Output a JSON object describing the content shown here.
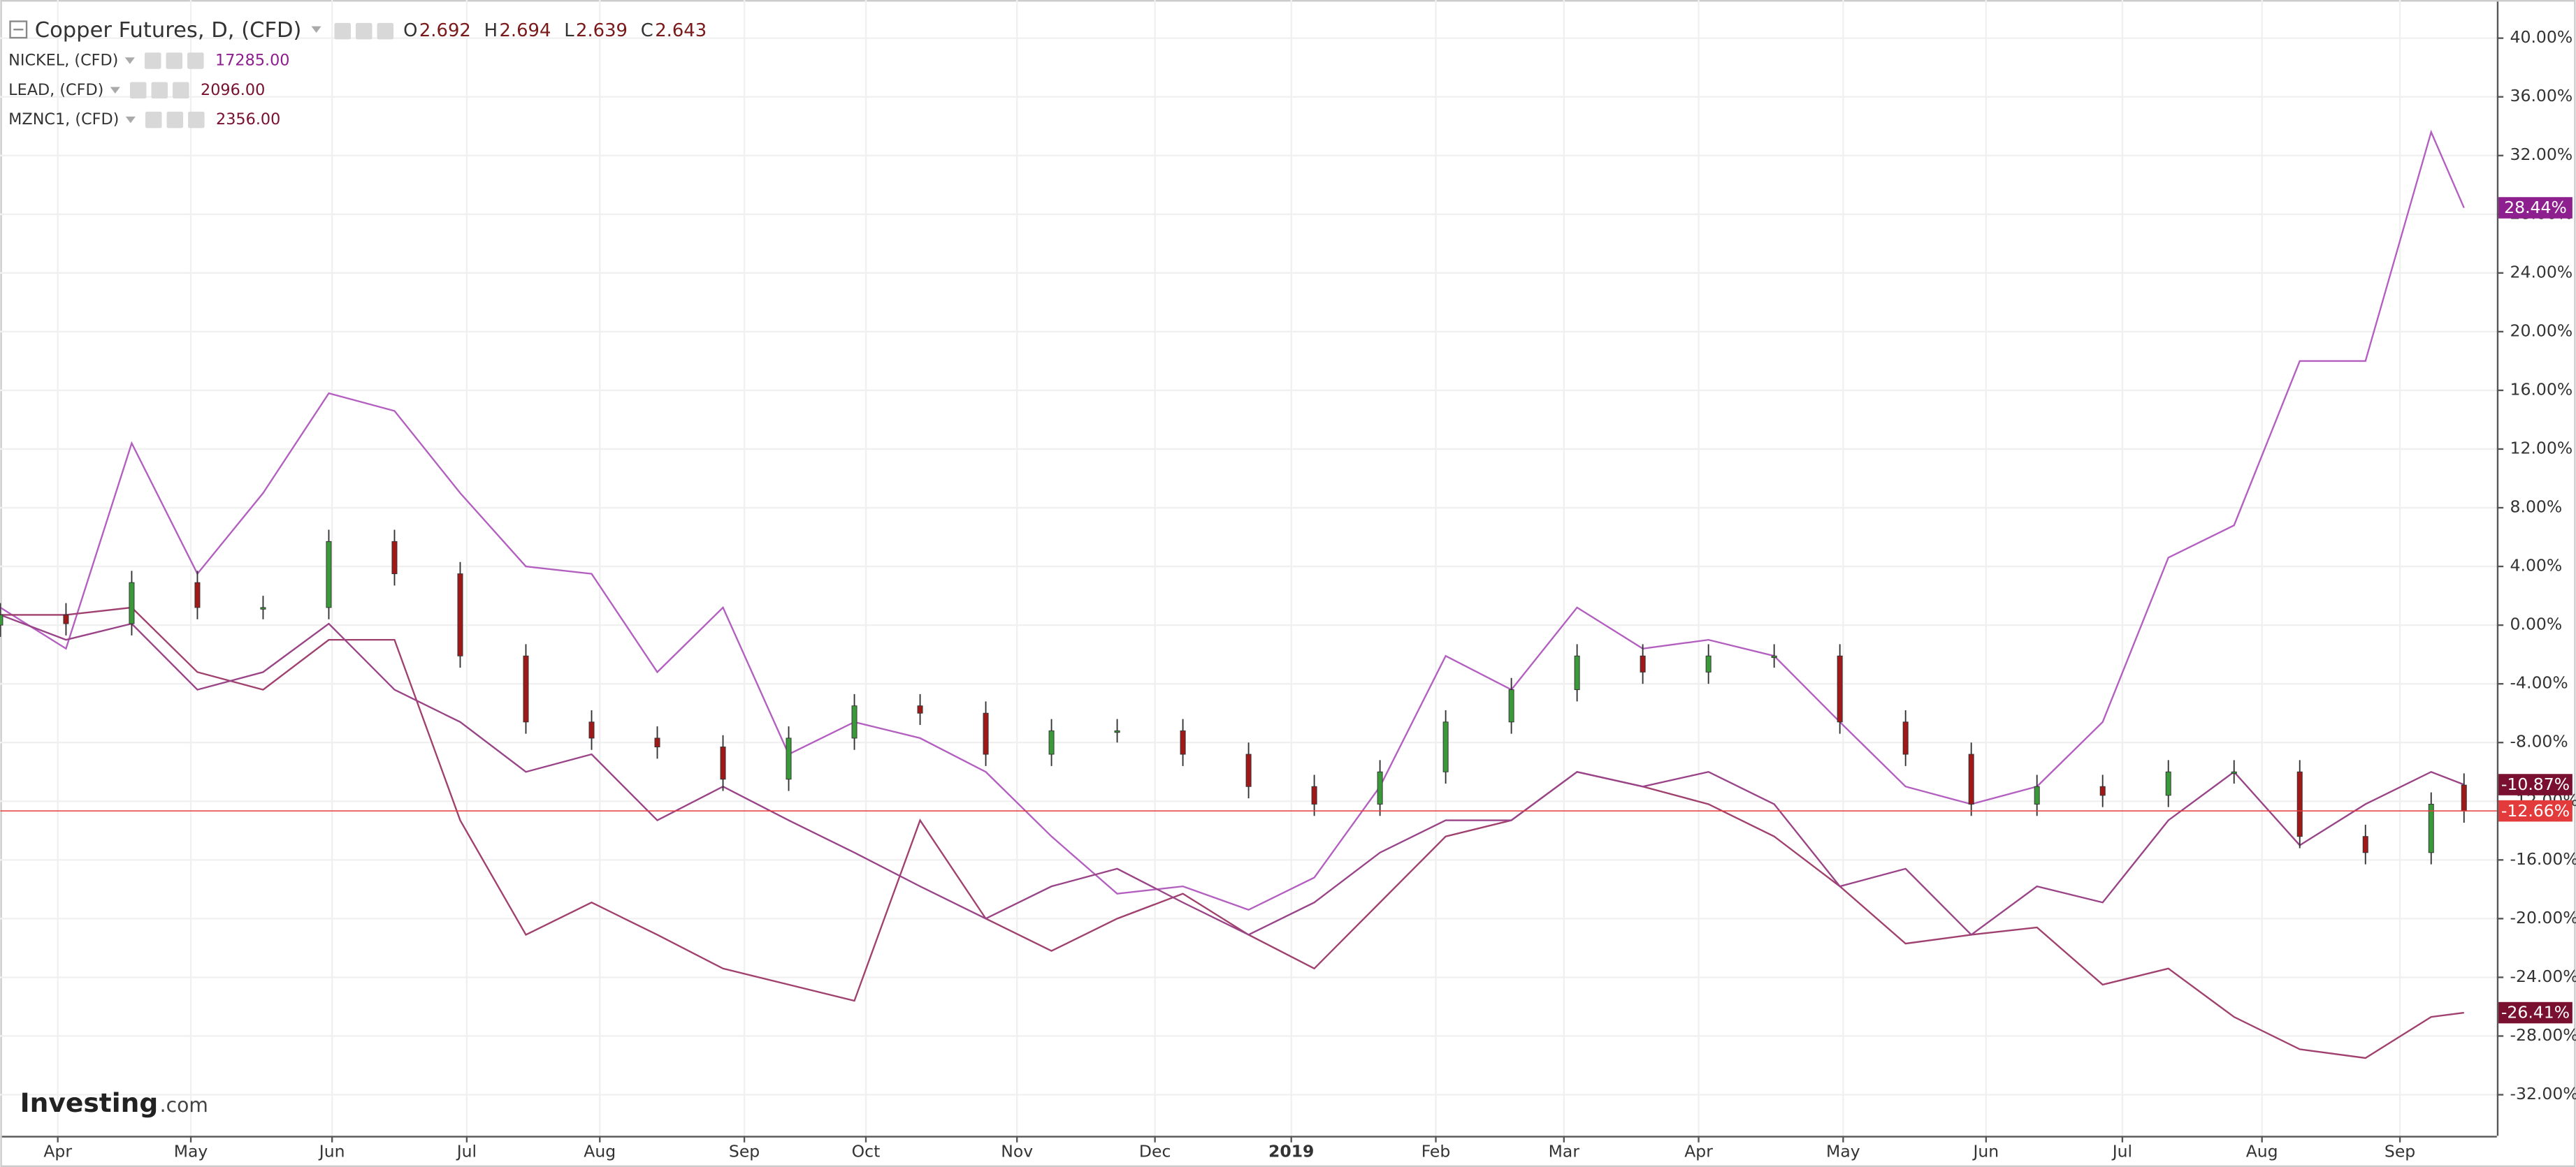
{
  "chart_data": {
    "type": "candlestick",
    "title": "Copper Futures, D, (CFD)",
    "ohlc_header": [
      {
        "label": "O",
        "value": 2.692
      },
      {
        "label": "H",
        "value": 2.694
      },
      {
        "label": "L",
        "value": 2.639
      },
      {
        "label": "C",
        "value": 2.643
      }
    ],
    "brand": "Investing",
    "brand_suffix": ".com",
    "x": [
      0,
      10,
      20,
      30,
      40,
      50,
      60,
      70,
      80,
      90,
      100,
      110,
      120,
      130,
      140,
      150,
      160,
      170,
      180,
      190,
      200,
      210,
      220,
      230,
      240,
      250,
      260,
      270,
      280,
      290,
      300,
      310,
      320,
      330,
      340,
      350,
      360,
      370,
      375
    ],
    "xlim": [
      0,
      380
    ],
    "xticks": [
      {
        "value": 8.75,
        "label": "Apr"
      },
      {
        "value": 29,
        "label": "May"
      },
      {
        "value": 50.5,
        "label": "Jun"
      },
      {
        "value": 71,
        "label": "Jul"
      },
      {
        "value": 91.25,
        "label": "Aug"
      },
      {
        "value": 113.25,
        "label": "Sep"
      },
      {
        "value": 131.75,
        "label": "Oct"
      },
      {
        "value": 154.75,
        "label": "Nov"
      },
      {
        "value": 175.75,
        "label": "Dec"
      },
      {
        "value": 196.5,
        "label": "2019"
      },
      {
        "value": 218.5,
        "label": "Feb"
      },
      {
        "value": 238,
        "label": "Mar"
      },
      {
        "value": 258.5,
        "label": "Apr"
      },
      {
        "value": 280.5,
        "label": "May"
      },
      {
        "value": 302.25,
        "label": "Jun"
      },
      {
        "value": 323,
        "label": "Jul"
      },
      {
        "value": 344.25,
        "label": "Aug"
      },
      {
        "value": 365.25,
        "label": "Sep"
      }
    ],
    "ylim": [
      -34.8,
      42.6
    ],
    "yticks": [
      {
        "value": -32,
        "label": "-32.00%"
      },
      {
        "value": -28,
        "label": "-28.00%"
      },
      {
        "value": -24,
        "label": "-24.00%"
      },
      {
        "value": -20,
        "label": "-20.00%"
      },
      {
        "value": -16,
        "label": "-16.00%"
      },
      {
        "value": -12,
        "label": "-12.00%"
      },
      {
        "value": -8,
        "label": "-8.00%"
      },
      {
        "value": -4,
        "label": "-4.00%"
      },
      {
        "value": 0,
        "label": "0.00%"
      },
      {
        "value": 4,
        "label": "4.00%"
      },
      {
        "value": 8,
        "label": "8.00%"
      },
      {
        "value": 12,
        "label": "12.00%"
      },
      {
        "value": 16,
        "label": "16.00%"
      },
      {
        "value": 20,
        "label": "20.00%"
      },
      {
        "value": 24,
        "label": "24.00%"
      },
      {
        "value": 28,
        "label": "28.00%"
      },
      {
        "value": 32,
        "label": "32.00%"
      },
      {
        "value": 36,
        "label": "36.00%"
      },
      {
        "value": 40,
        "label": "40.00%"
      }
    ],
    "grid": true,
    "candles": {
      "up_color": "#3a9a3a",
      "down_color": "#a01818",
      "label_color": "#e33b3b",
      "last_label": "-12.66%",
      "open": [
        0,
        0.7,
        0.1,
        2.9,
        1.2,
        1.2,
        5.7,
        3.5,
        -2.1,
        -6.6,
        -7.7,
        -8.3,
        -10.5,
        -7.7,
        -5.5,
        -6,
        -8.8,
        -7.2,
        -7.2,
        -8.8,
        -11,
        -12.2,
        -10,
        -6.6,
        -4.4,
        -2.1,
        -3.2,
        -2.1,
        -2.1,
        -6.6,
        -8.8,
        -12.2,
        -11,
        -11.6,
        -10,
        -10,
        -14.4,
        -15.5,
        -10.9
      ],
      "high": [
        1.5,
        1.5,
        3.7,
        3.7,
        2,
        6.5,
        6.5,
        4.3,
        -1.3,
        -5.8,
        -6.9,
        -7.5,
        -6.9,
        -4.7,
        -4.7,
        -5.2,
        -6.4,
        -6.4,
        -6.4,
        -8,
        -10.2,
        -9.2,
        -5.8,
        -3.6,
        -1.3,
        -1.3,
        -1.3,
        -1.3,
        -1.3,
        -5.8,
        -8,
        -10.2,
        -10.2,
        -9.2,
        -9.2,
        -9.2,
        -13.6,
        -11.4,
        -10.1
      ],
      "low": [
        -0.8,
        -0.7,
        -0.7,
        0.4,
        0.4,
        0.4,
        2.7,
        -2.9,
        -7.4,
        -8.5,
        -9.1,
        -11.3,
        -11.3,
        -8.5,
        -6.8,
        -9.6,
        -9.6,
        -8,
        -9.6,
        -11.8,
        -13,
        -13,
        -10.8,
        -7.4,
        -5.2,
        -4,
        -4,
        -2.9,
        -7.4,
        -9.6,
        -13,
        -13,
        -12.4,
        -12.4,
        -10.8,
        -15.2,
        -16.3,
        -16.3,
        -13.46
      ],
      "close": [
        0.7,
        0.1,
        2.9,
        1.2,
        1.2,
        5.7,
        3.5,
        -2.1,
        -6.6,
        -7.7,
        -8.3,
        -10.5,
        -7.7,
        -5.5,
        -6,
        -8.8,
        -7.2,
        -7.2,
        -8.8,
        -11,
        -12.2,
        -10,
        -6.6,
        -4.4,
        -2.1,
        -3.2,
        -2.1,
        -2.1,
        -6.6,
        -8.8,
        -12.2,
        -11,
        -11.6,
        -10,
        -10,
        -14.4,
        -15.5,
        -12.2,
        -12.66
      ]
    },
    "series": [
      {
        "name": "NICKEL, (CFD)",
        "legend_value": "17285.00",
        "color": "#b35fc0",
        "label_color": "#8e1f8e",
        "last_label": "28.44%",
        "values": [
          1.2,
          -1.6,
          12.4,
          3.5,
          9,
          15.8,
          14.6,
          9,
          4,
          3.5,
          -3.2,
          1.2,
          -8.8,
          -6.6,
          -7.7,
          -10,
          -14.4,
          -18.3,
          -17.8,
          -19.4,
          -17.2,
          -11,
          -2.1,
          -4.4,
          1.2,
          -1.6,
          -1,
          -2.1,
          -6.6,
          -11,
          -12.2,
          -11,
          -6.6,
          4.6,
          6.8,
          18,
          18,
          33.6,
          28.44
        ]
      },
      {
        "name": "LEAD, (CFD)",
        "legend_value": "2096.00",
        "color": "#a0406e",
        "label_color": "#7a1030",
        "last_label": "-26.41%",
        "values": [
          0.7,
          0.7,
          1.2,
          -3.2,
          -4.4,
          -1,
          -1,
          -13.3,
          -21.1,
          -18.9,
          -21.1,
          -23.4,
          -24.5,
          -25.6,
          -13.3,
          -20,
          -22.2,
          -20,
          -18.3,
          -21.1,
          -23.4,
          -18.9,
          -14.4,
          -13.3,
          -10,
          -11,
          -12.2,
          -14.4,
          -17.8,
          -21.7,
          -21.1,
          -20.6,
          -24.5,
          -23.4,
          -26.7,
          -28.9,
          -29.5,
          -26.7,
          -26.41
        ]
      },
      {
        "name": "MZNC1, (CFD)",
        "legend_value": "2356.00",
        "color": "#9a4488",
        "label_color": "#7a1030",
        "last_label": "-10.87%",
        "values": [
          0.7,
          -1,
          0.1,
          -4.4,
          -3.2,
          0.1,
          -4.4,
          -6.6,
          -10,
          -8.8,
          -13.3,
          -11,
          -13.3,
          -15.5,
          -17.8,
          -20,
          -17.8,
          -16.6,
          -18.9,
          -21.1,
          -18.9,
          -15.5,
          -13.3,
          -13.3,
          -10,
          -11,
          -10,
          -12.2,
          -17.8,
          -16.6,
          -21.1,
          -17.8,
          -18.9,
          -13.3,
          -10,
          -15,
          -12.2,
          -10,
          -10.87
        ]
      }
    ]
  }
}
